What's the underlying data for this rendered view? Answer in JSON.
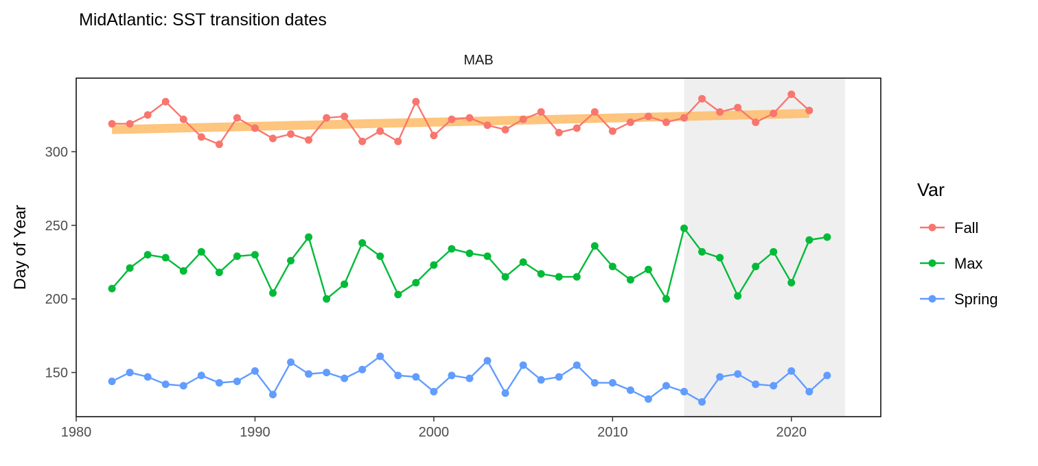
{
  "chart_data": {
    "type": "line",
    "title": "MidAtlantic: SST transition dates",
    "facet_label": "MAB",
    "xlabel": "",
    "ylabel": "Day of Year",
    "xlim": [
      1980,
      2025
    ],
    "ylim": [
      120,
      350
    ],
    "x_ticks": [
      1980,
      1990,
      2000,
      2010,
      2020
    ],
    "y_ticks": [
      150,
      200,
      250,
      300
    ],
    "grid": false,
    "highlight_range": [
      2014,
      2023
    ],
    "legend": {
      "title": "Var",
      "position": "right"
    },
    "series": [
      {
        "name": "Fall",
        "color": "#F8766D",
        "x": [
          1982,
          1983,
          1984,
          1985,
          1986,
          1987,
          1988,
          1989,
          1990,
          1991,
          1992,
          1993,
          1994,
          1995,
          1996,
          1997,
          1998,
          1999,
          2000,
          2001,
          2002,
          2003,
          2004,
          2005,
          2006,
          2007,
          2008,
          2009,
          2010,
          2011,
          2012,
          2013,
          2014,
          2015,
          2016,
          2017,
          2018,
          2019,
          2020,
          2021
        ],
        "values": [
          319,
          319,
          325,
          334,
          322,
          310,
          305,
          323,
          316,
          309,
          312,
          308,
          323,
          324,
          307,
          314,
          307,
          334,
          311,
          322,
          323,
          318,
          315,
          322,
          327,
          313,
          316,
          327,
          314,
          320,
          324,
          320,
          323,
          336,
          327,
          330,
          320,
          326,
          339,
          328
        ]
      },
      {
        "name": "Max",
        "color": "#00BA38",
        "x": [
          1982,
          1983,
          1984,
          1985,
          1986,
          1987,
          1988,
          1989,
          1990,
          1991,
          1992,
          1993,
          1994,
          1995,
          1996,
          1997,
          1998,
          1999,
          2000,
          2001,
          2002,
          2003,
          2004,
          2005,
          2006,
          2007,
          2008,
          2009,
          2010,
          2011,
          2012,
          2013,
          2014,
          2015,
          2016,
          2017,
          2018,
          2019,
          2020,
          2021,
          2022
        ],
        "values": [
          207,
          221,
          230,
          228,
          219,
          232,
          218,
          229,
          230,
          204,
          226,
          242,
          200,
          210,
          238,
          229,
          203,
          211,
          223,
          234,
          231,
          229,
          215,
          225,
          217,
          215,
          215,
          236,
          222,
          213,
          220,
          200,
          248,
          232,
          228,
          202,
          222,
          232,
          211,
          240,
          242
        ]
      },
      {
        "name": "Spring",
        "color": "#619CFF",
        "x": [
          1982,
          1983,
          1984,
          1985,
          1986,
          1987,
          1988,
          1989,
          1990,
          1991,
          1992,
          1993,
          1994,
          1995,
          1996,
          1997,
          1998,
          1999,
          2000,
          2001,
          2002,
          2003,
          2004,
          2005,
          2006,
          2007,
          2008,
          2009,
          2010,
          2011,
          2012,
          2013,
          2014,
          2015,
          2016,
          2017,
          2018,
          2019,
          2020,
          2021,
          2022
        ],
        "values": [
          144,
          150,
          147,
          142,
          141,
          148,
          143,
          144,
          151,
          135,
          157,
          149,
          150,
          146,
          152,
          161,
          148,
          147,
          137,
          148,
          146,
          158,
          136,
          155,
          145,
          147,
          155,
          143,
          143,
          138,
          132,
          141,
          137,
          130,
          147,
          149,
          142,
          141,
          151,
          137,
          148
        ]
      }
    ],
    "trend": {
      "series": "Fall",
      "color": "#FDBF6F",
      "x": [
        1982,
        2021
      ],
      "values": [
        315,
        326
      ]
    }
  }
}
